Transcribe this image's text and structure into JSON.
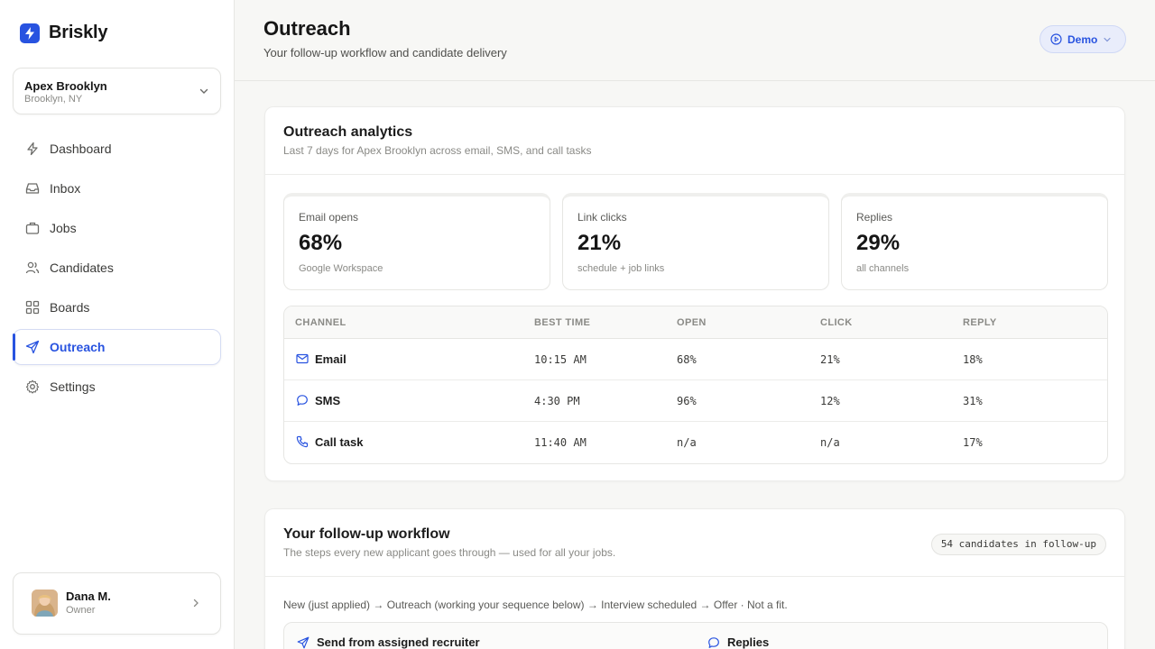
{
  "brand": {
    "name": "Briskly"
  },
  "workspace": {
    "name": "Apex Brooklyn",
    "location": "Brooklyn, NY"
  },
  "nav": [
    {
      "label": "Dashboard",
      "icon": "bolt-icon"
    },
    {
      "label": "Inbox",
      "icon": "inbox-icon"
    },
    {
      "label": "Jobs",
      "icon": "briefcase-icon"
    },
    {
      "label": "Candidates",
      "icon": "users-icon"
    },
    {
      "label": "Boards",
      "icon": "grid-icon"
    },
    {
      "label": "Outreach",
      "icon": "send-icon",
      "active": true
    },
    {
      "label": "Settings",
      "icon": "gear-icon"
    }
  ],
  "user": {
    "name": "Dana M.",
    "role": "Owner"
  },
  "header": {
    "title": "Outreach",
    "subtitle": "Your follow-up workflow and candidate delivery",
    "demo_label": "Demo"
  },
  "analytics": {
    "title": "Outreach analytics",
    "subtitle": "Last 7 days for Apex Brooklyn across email, SMS, and call tasks",
    "stats": [
      {
        "label": "Email opens",
        "value": "68%",
        "note": "Google Workspace"
      },
      {
        "label": "Link clicks",
        "value": "21%",
        "note": "schedule + job links"
      },
      {
        "label": "Replies",
        "value": "29%",
        "note": "all channels"
      }
    ],
    "columns": [
      "CHANNEL",
      "BEST TIME",
      "OPEN",
      "CLICK",
      "REPLY"
    ],
    "rows": [
      {
        "channel": "Email",
        "icon": "mail-icon",
        "best_time": "10:15 AM",
        "open": "68%",
        "click": "21%",
        "reply": "18%"
      },
      {
        "channel": "SMS",
        "icon": "chat-bubble-icon",
        "best_time": "4:30 PM",
        "open": "96%",
        "click": "12%",
        "reply": "31%"
      },
      {
        "channel": "Call task",
        "icon": "phone-icon",
        "best_time": "11:40 AM",
        "open": "n/a",
        "click": "n/a",
        "reply": "17%"
      }
    ]
  },
  "workflow": {
    "title": "Your follow-up workflow",
    "subtitle": "The steps every new applicant goes through — used for all your jobs.",
    "badge": "54 candidates in follow-up",
    "flow": "New (just applied) → Outreach (working your sequence below) → Interview scheduled → Offer · Not a fit.",
    "steps": [
      {
        "label": "Send from assigned recruiter",
        "icon": "send-icon"
      },
      {
        "label": "Replies",
        "icon": "chat-bubble-icon"
      }
    ]
  },
  "colors": {
    "accent": "#2853e0",
    "accent_bg": "#e9edfb",
    "page_bg": "#f7f7f5"
  }
}
